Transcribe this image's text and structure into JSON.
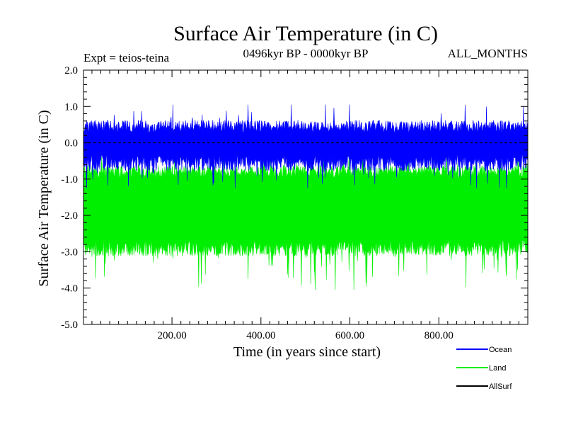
{
  "chart_data": {
    "type": "line",
    "title": "Surface Air Temperature (in C)",
    "subtitle": "0496kyr BP - 0000kyr BP",
    "expt_label": "Expt = teios-teina",
    "months_label": "ALL_MONTHS",
    "xlabel": "Time (in years since start)",
    "ylabel": "Surface Air Temperature (in C)",
    "xlim": [
      1,
      1000
    ],
    "ylim": [
      -5.0,
      2.0
    ],
    "x_ticks": [
      200,
      400,
      600,
      800
    ],
    "x_tick_labels": [
      "200.00",
      "400.00",
      "600.00",
      "800.00"
    ],
    "y_ticks": [
      2.0,
      1.0,
      0.0,
      -1.0,
      -2.0,
      -3.0,
      -4.0,
      -5.0
    ],
    "y_tick_labels": [
      "2.0",
      "1.0",
      "0.0",
      "-1.0",
      "-2.0",
      "-3.0",
      "-4.0",
      "-5.0"
    ],
    "series": [
      {
        "name": "Ocean",
        "color": "#0000ff",
        "summary": {
          "n_years": 1000,
          "typical_max": 0.45,
          "typical_min": -0.55,
          "peak_max": 1.05,
          "peak_min": -1.25
        }
      },
      {
        "name": "Land",
        "color": "#00ee00",
        "summary": {
          "n_years": 1000,
          "typical_max": -0.8,
          "typical_min": -2.9,
          "peak_max": -0.35,
          "peak_min": -4.05
        }
      },
      {
        "name": "AllSurf",
        "color": "#000000",
        "summary": {
          "n_years": 1000,
          "typical_max": 0.0,
          "typical_min": 0.0,
          "peak_max": 0.0,
          "peak_min": 0.0
        }
      }
    ]
  }
}
